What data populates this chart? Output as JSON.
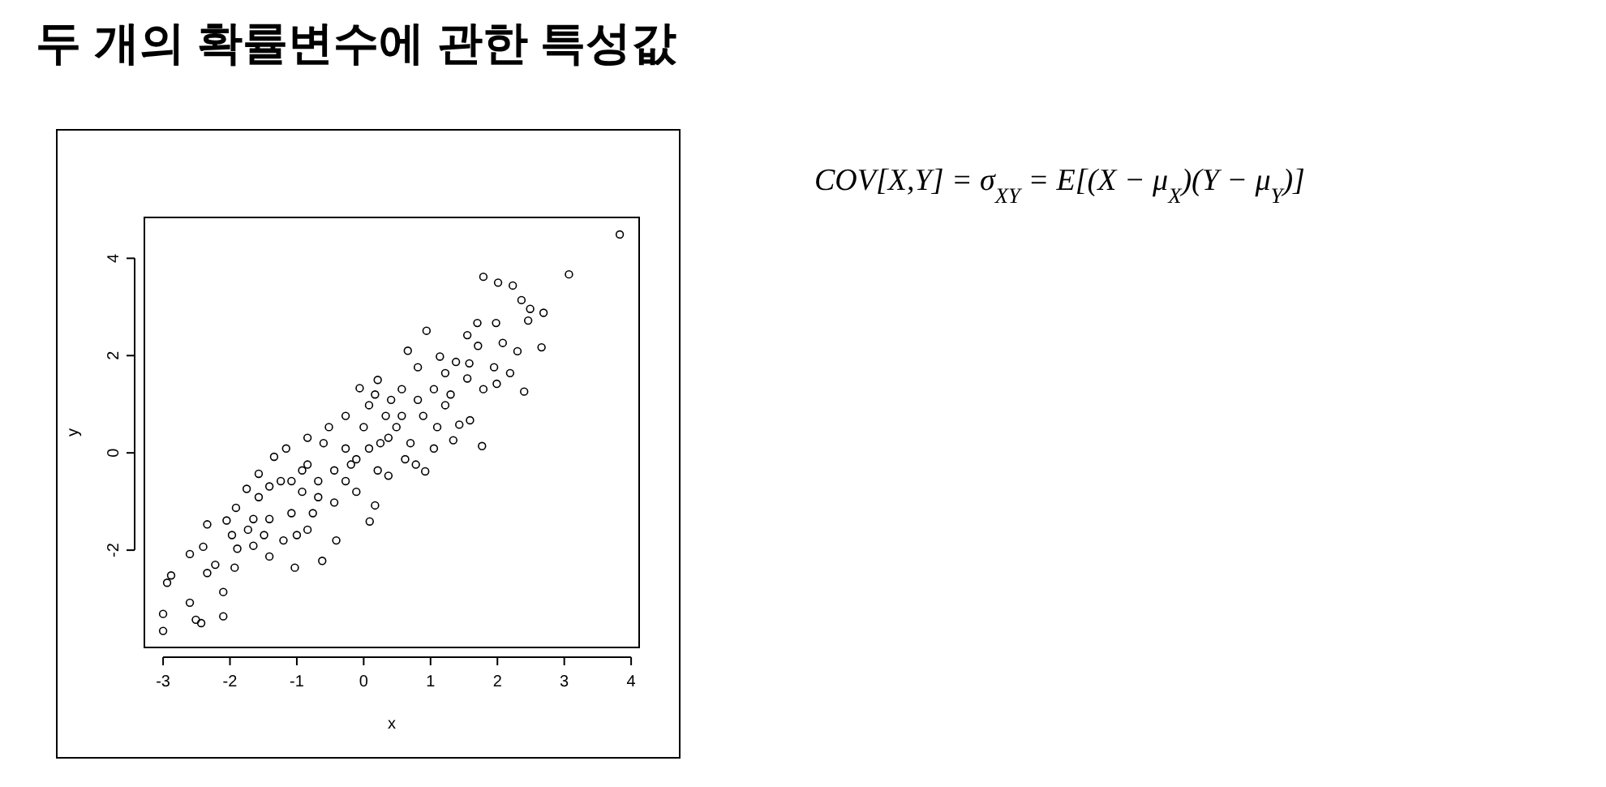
{
  "chart_data": {
    "type": "scatter",
    "title": "두 개의 확률변수에 관한 특성값",
    "xlabel": "x",
    "ylabel": "y",
    "annotations": [
      "COV[X,Y] = σ$_{XY}$ = E[(X − μ$_{X}$)(Y − μ$_{Y}$)]"
    ],
    "color": "#000000",
    "marker": "circle",
    "grid": false,
    "xlim": [
      -3.28,
      4.12
    ],
    "ylim": [
      -4.0,
      4.84
    ],
    "xticks": [
      -3,
      -2,
      -1,
      0,
      1,
      2,
      3,
      4
    ],
    "yticks": [
      -2,
      0,
      2,
      4
    ],
    "x": [
      3.83,
      3.07,
      1.79,
      2.01,
      2.23,
      2.36,
      2.49,
      2.69,
      2.46,
      2.66,
      2.4,
      1.77,
      1.34,
      0.94,
      0.66,
      0.21,
      -0.06,
      1.98,
      1.7,
      2.08,
      2.3,
      1.58,
      1.99,
      1.43,
      1.59,
      1.1,
      0.7,
      0.37,
      0.78,
      0.92,
      0.09,
      0.17,
      -0.41,
      -0.62,
      -1.03,
      -1.34,
      -1.57,
      -1.75,
      -1.16,
      -1.91,
      -2.05,
      -2.34,
      -2.6,
      -2.4,
      -3.0,
      -3.0,
      -2.94,
      -2.88,
      -2.6,
      -2.51,
      -2.43,
      -2.1,
      -2.1,
      -2.34,
      -2.22,
      -1.93,
      -1.89,
      -1.65,
      -1.41,
      -1.2,
      -1.0,
      -1.08,
      -1.41,
      -0.92,
      -0.68,
      -0.44,
      -0.19,
      -0.27,
      -0.6,
      -0.84,
      -1.24,
      -1.57,
      -1.73,
      0.0,
      0.08,
      0.41,
      0.49,
      0.25,
      0.57,
      0.81,
      1.05,
      1.22,
      1.38,
      1.14,
      0.81,
      1.55,
      1.79,
      1.71,
      1.22,
      0.89,
      0.08,
      -0.11,
      -0.44,
      -0.27,
      -0.76,
      0.37,
      0.62,
      -0.68,
      -0.84,
      -1.49,
      -1.08,
      -0.92,
      0.33,
      0.57,
      0.17,
      1.05,
      1.3,
      1.55,
      1.95,
      2.19,
      -0.27,
      -0.52,
      -0.84,
      -0.11,
      0.21,
      -1.41,
      -1.65,
      -1.97
    ],
    "values": [
      4.49,
      3.67,
      3.62,
      3.5,
      3.44,
      3.14,
      2.96,
      2.88,
      2.72,
      2.17,
      1.26,
      0.14,
      0.26,
      2.51,
      2.1,
      1.5,
      1.33,
      2.67,
      2.67,
      2.26,
      2.09,
      1.84,
      1.42,
      0.58,
      0.67,
      0.53,
      0.2,
      -0.47,
      -0.24,
      -0.38,
      -1.41,
      -1.08,
      -1.8,
      -2.22,
      -2.36,
      -0.08,
      -0.43,
      -0.74,
      0.09,
      -1.13,
      -1.39,
      -1.47,
      -2.08,
      -1.93,
      -3.31,
      -3.66,
      -2.67,
      -2.52,
      -3.08,
      -3.43,
      -3.5,
      -3.36,
      -2.86,
      -2.47,
      -2.3,
      -2.36,
      -1.97,
      -1.91,
      -2.13,
      -1.8,
      -1.69,
      -1.24,
      -1.36,
      -0.8,
      -0.58,
      -0.36,
      -0.24,
      0.09,
      0.2,
      -0.24,
      -0.58,
      -0.91,
      -1.58,
      0.53,
      0.98,
      1.09,
      0.53,
      0.2,
      0.76,
      1.09,
      1.31,
      1.64,
      1.87,
      1.98,
      1.76,
      1.53,
      1.31,
      2.2,
      0.98,
      0.76,
      0.09,
      -0.8,
      -1.02,
      -0.58,
      -1.24,
      0.31,
      -0.13,
      -0.91,
      -1.58,
      -1.69,
      -0.58,
      -0.36,
      0.76,
      1.31,
      1.2,
      0.09,
      1.2,
      2.42,
      1.76,
      1.64,
      0.76,
      0.53,
      0.31,
      -0.13,
      -0.36,
      -0.69,
      -1.36,
      -1.69
    ]
  }
}
